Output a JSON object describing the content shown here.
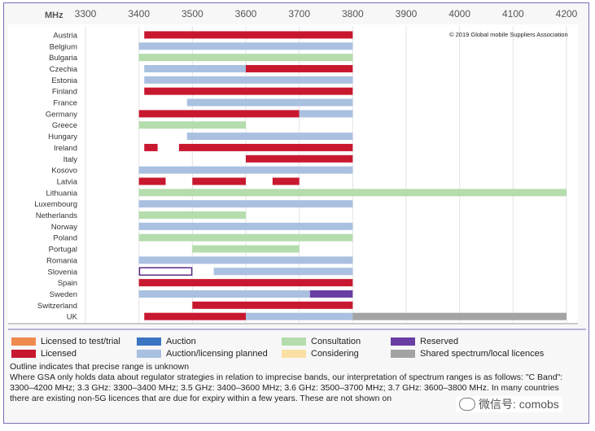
{
  "chart_data": {
    "type": "range-bar",
    "axis_unit_label": "MHz",
    "x_ticks": [
      3300,
      3400,
      3500,
      3600,
      3700,
      3800,
      3900,
      4000,
      4100,
      4200
    ],
    "xlim": [
      3300,
      4200
    ],
    "copyright": "© 2019 Global mobile Suppliers Association",
    "categories": [
      "Austria",
      "Belgium",
      "Bulgaria",
      "Czechia",
      "Estonia",
      "Finland",
      "France",
      "Germany",
      "Greece",
      "Hungary",
      "Ireland",
      "Italy",
      "Kosovo",
      "Latvia",
      "Lithuania",
      "Luxembourg",
      "Netherlands",
      "Norway",
      "Poland",
      "Portugal",
      "Romania",
      "Slovenia",
      "Spain",
      "Sweden",
      "Switzerland",
      "UK"
    ],
    "statuses": {
      "test": {
        "label": "Licensed to test/trial",
        "color": "#ee8a4e"
      },
      "licensed": {
        "label": "Licensed",
        "color": "#c8182f"
      },
      "auction": {
        "label": "Auction",
        "color": "#3b74c2"
      },
      "planned": {
        "label": "Auction/licensing planned",
        "color": "#a9c0e0"
      },
      "consultation": {
        "label": "Consultation",
        "color": "#b5dcad"
      },
      "considering": {
        "label": "Considering",
        "color": "#fbe0a3"
      },
      "reserved": {
        "label": "Reserved",
        "color": "#6a3da3"
      },
      "shared": {
        "label": "Shared spectrum/local licences",
        "color": "#a3a3a3"
      },
      "outline": {
        "label": "Outline indicates that precise range is unknown",
        "color": "#5a2a82"
      }
    },
    "ranges": [
      {
        "country": "Austria",
        "start": 3410,
        "end": 3800,
        "status": "licensed"
      },
      {
        "country": "Belgium",
        "start": 3400,
        "end": 3800,
        "status": "planned"
      },
      {
        "country": "Bulgaria",
        "start": 3400,
        "end": 3800,
        "status": "consultation"
      },
      {
        "country": "Czechia",
        "start": 3410,
        "end": 3600,
        "status": "planned"
      },
      {
        "country": "Czechia",
        "start": 3600,
        "end": 3800,
        "status": "licensed"
      },
      {
        "country": "Estonia",
        "start": 3410,
        "end": 3800,
        "status": "planned"
      },
      {
        "country": "Finland",
        "start": 3410,
        "end": 3800,
        "status": "licensed"
      },
      {
        "country": "France",
        "start": 3490,
        "end": 3800,
        "status": "planned"
      },
      {
        "country": "Germany",
        "start": 3400,
        "end": 3700,
        "status": "licensed"
      },
      {
        "country": "Germany",
        "start": 3700,
        "end": 3800,
        "status": "planned"
      },
      {
        "country": "Greece",
        "start": 3400,
        "end": 3600,
        "status": "consultation"
      },
      {
        "country": "Hungary",
        "start": 3490,
        "end": 3800,
        "status": "planned"
      },
      {
        "country": "Ireland",
        "start": 3410,
        "end": 3435,
        "status": "licensed"
      },
      {
        "country": "Ireland",
        "start": 3475,
        "end": 3800,
        "status": "licensed"
      },
      {
        "country": "Italy",
        "start": 3600,
        "end": 3800,
        "status": "licensed"
      },
      {
        "country": "Kosovo",
        "start": 3400,
        "end": 3800,
        "status": "planned"
      },
      {
        "country": "Latvia",
        "start": 3400,
        "end": 3450,
        "status": "licensed"
      },
      {
        "country": "Latvia",
        "start": 3500,
        "end": 3600,
        "status": "licensed"
      },
      {
        "country": "Latvia",
        "start": 3650,
        "end": 3700,
        "status": "licensed"
      },
      {
        "country": "Lithuania",
        "start": 3400,
        "end": 4200,
        "status": "consultation"
      },
      {
        "country": "Luxembourg",
        "start": 3400,
        "end": 3800,
        "status": "planned"
      },
      {
        "country": "Netherlands",
        "start": 3400,
        "end": 3600,
        "status": "consultation"
      },
      {
        "country": "Norway",
        "start": 3400,
        "end": 3800,
        "status": "planned"
      },
      {
        "country": "Poland",
        "start": 3400,
        "end": 3800,
        "status": "consultation"
      },
      {
        "country": "Portugal",
        "start": 3500,
        "end": 3700,
        "status": "consultation"
      },
      {
        "country": "Romania",
        "start": 3400,
        "end": 3800,
        "status": "planned"
      },
      {
        "country": "Slovenia",
        "start": 3400,
        "end": 3500,
        "status": "outline"
      },
      {
        "country": "Slovenia",
        "start": 3540,
        "end": 3800,
        "status": "planned"
      },
      {
        "country": "Spain",
        "start": 3400,
        "end": 3800,
        "status": "licensed"
      },
      {
        "country": "Sweden",
        "start": 3400,
        "end": 3720,
        "status": "planned"
      },
      {
        "country": "Sweden",
        "start": 3720,
        "end": 3800,
        "status": "reserved"
      },
      {
        "country": "Switzerland",
        "start": 3500,
        "end": 3800,
        "status": "licensed"
      },
      {
        "country": "UK",
        "start": 3410,
        "end": 3600,
        "status": "licensed"
      },
      {
        "country": "UK",
        "start": 3600,
        "end": 3800,
        "status": "planned"
      },
      {
        "country": "UK",
        "start": 3800,
        "end": 4200,
        "status": "shared"
      }
    ]
  },
  "notes": {
    "line1": "Where GSA only holds data about regulator strategies in relation to imprecise bands, our interpretation of spectrum ranges is as follows: \"C Band\": 3300–4200 MHz; 3.3 GHz: 3300–3400 MHz; 3.5 GHz: 3400–3600 MHz; 3.6 GHz: 3500–3700 MHz; 3.7 GHz: 3600–3800 MHz. In many countries there are existing non-5G licences that are due for expiry within a few years. These are not shown on"
  },
  "watermark": {
    "text": "微信号: comobs"
  }
}
